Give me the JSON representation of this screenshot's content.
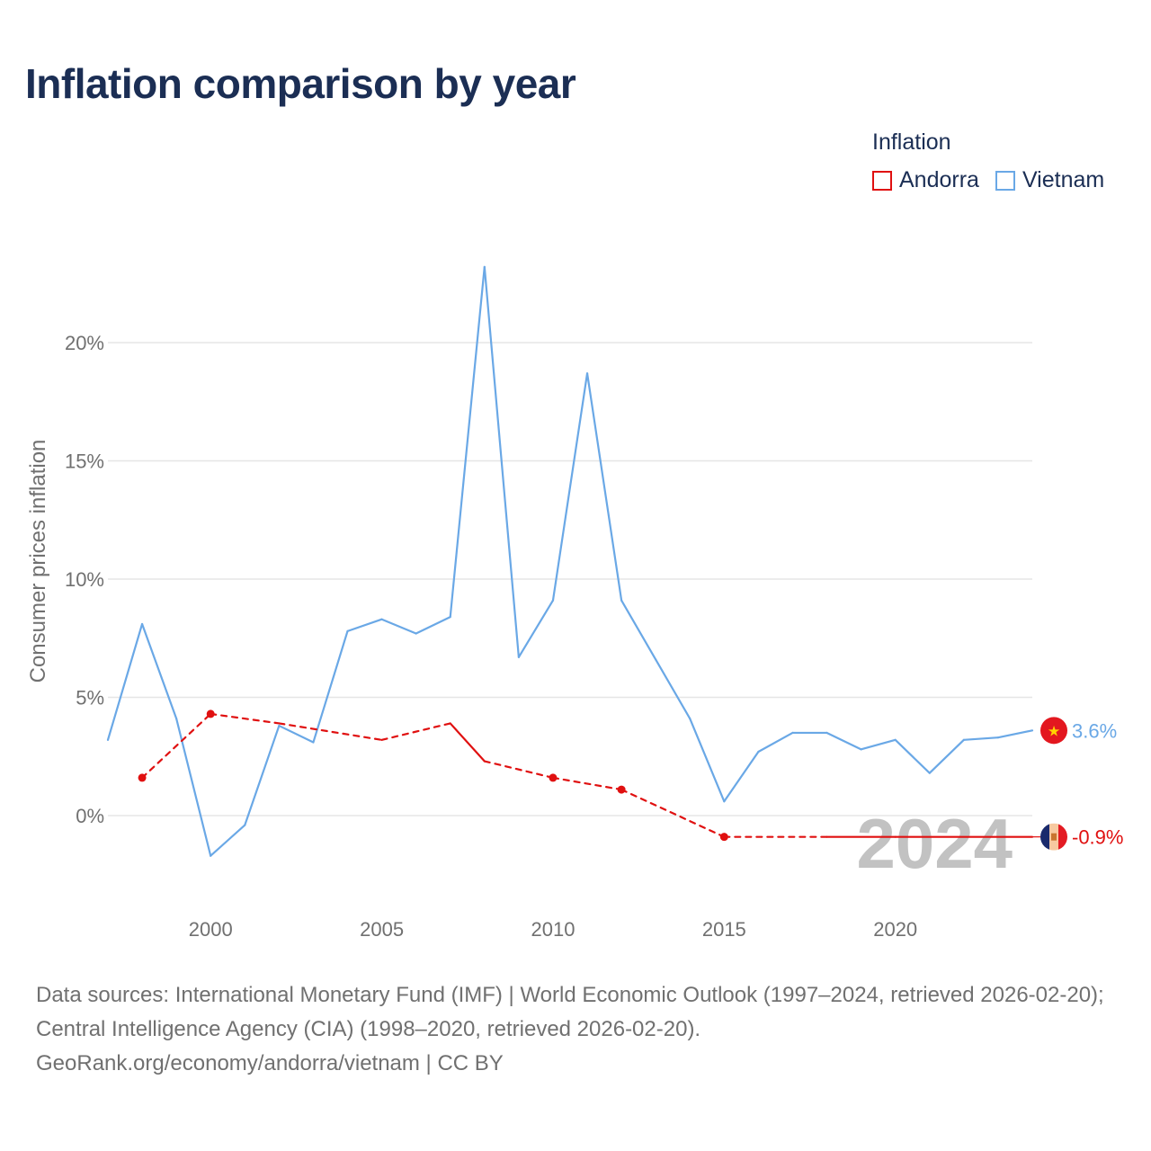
{
  "title": "Inflation comparison by year",
  "legend": {
    "title": "Inflation",
    "items": [
      {
        "label": "Andorra",
        "color": "#e01010"
      },
      {
        "label": "Vietnam",
        "color": "#6aa8e6"
      }
    ]
  },
  "watermark_year": "2024",
  "footer": {
    "line1": "Data sources: International Monetary Fund (IMF) | World Economic Outlook (1997–2024, retrieved 2026-02-20); Central Intelligence Agency (CIA) (1998–2020, retrieved 2026-02-20).",
    "line2": "GeoRank.org/economy/andorra/vietnam | CC BY"
  },
  "chart_data": {
    "type": "line",
    "title": "Inflation comparison by year",
    "xlabel": "",
    "ylabel": "Consumer prices inflation",
    "xlim": [
      1997,
      2024
    ],
    "ylim": [
      -3.5,
      25
    ],
    "x_ticks": [
      2000,
      2005,
      2010,
      2015,
      2020
    ],
    "y_ticks": [
      0,
      5,
      10,
      15,
      20
    ],
    "y_tick_labels": [
      "0%",
      "5%",
      "10%",
      "15%",
      "20%"
    ],
    "grid": true,
    "legend_position": "top-right",
    "series": [
      {
        "name": "Vietnam",
        "color": "#6aa8e6",
        "end_label": "3.6%",
        "x": [
          1997,
          1998,
          1999,
          2000,
          2001,
          2002,
          2003,
          2004,
          2005,
          2006,
          2007,
          2008,
          2009,
          2010,
          2011,
          2012,
          2013,
          2014,
          2015,
          2016,
          2017,
          2018,
          2019,
          2020,
          2021,
          2022,
          2023,
          2024
        ],
        "values": [
          3.2,
          8.1,
          4.1,
          -1.7,
          -0.4,
          3.8,
          3.1,
          7.8,
          8.3,
          7.7,
          8.4,
          23.2,
          6.7,
          9.1,
          18.7,
          9.1,
          6.6,
          4.1,
          0.6,
          2.7,
          3.5,
          3.5,
          2.8,
          3.2,
          1.8,
          3.2,
          3.3,
          3.6
        ]
      },
      {
        "name": "Andorra",
        "color": "#e01010",
        "end_label": "-0.9%",
        "x": [
          1998,
          2000,
          2002,
          2005,
          2007,
          2008,
          2010,
          2012,
          2015,
          2018,
          2020,
          2024
        ],
        "values": [
          1.6,
          4.3,
          3.9,
          3.2,
          3.9,
          2.3,
          1.6,
          1.1,
          -0.9,
          -0.9,
          -0.9,
          -0.9
        ],
        "dashed_segments": [
          [
            1998,
            2000
          ],
          [
            2000,
            2002
          ],
          [
            2002,
            2005
          ],
          [
            2005,
            2007
          ],
          [
            2008,
            2010
          ],
          [
            2010,
            2012
          ],
          [
            2012,
            2015
          ],
          [
            2015,
            2018
          ]
        ],
        "markers": [
          1998,
          2000,
          2010,
          2012,
          2015
        ]
      }
    ]
  }
}
